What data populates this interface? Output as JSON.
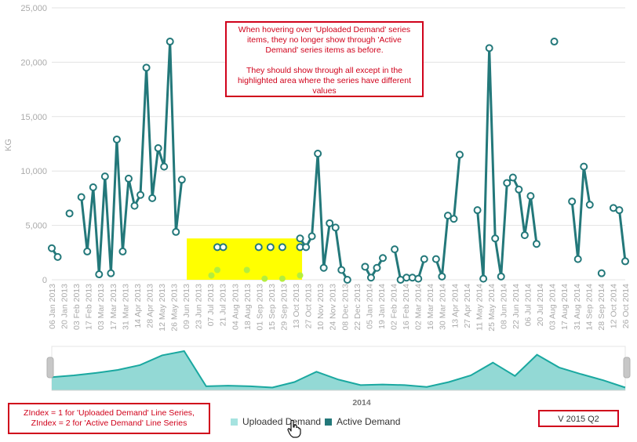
{
  "colors": {
    "active": "#23787a",
    "uploaded": "#a6e3e0",
    "navigator_fill": "#93d9d5",
    "navigator_line": "#1aa8a0",
    "highlight": "#ffff00",
    "uploaded_point": "#b4ee3e",
    "grid": "#e3e3e3",
    "axis_text": "#aaaaaa",
    "annotation": "#d0021b"
  },
  "annotations": {
    "main_lines_1": [
      "When hovering over 'Uploaded Demand' series",
      "items, they no longer show through 'Active",
      "Demand' series items as before."
    ],
    "main_lines_2": [
      "They should show through all except in the",
      "highlighted area where the series have different",
      "values"
    ],
    "zindex_lines": [
      "ZIndex = 1 for 'Uploaded Demand' Line Series,",
      "ZIndex = 2 for 'Active Demand' Line Series"
    ],
    "version": "V 2015 Q2"
  },
  "legend": {
    "uploaded": "Uploaded Demand",
    "active": "Active Demand"
  },
  "cursor_icon": "hand-pointer-icon",
  "chart_data": {
    "type": "line",
    "ylabel": "KG",
    "ylim": [
      0,
      25000
    ],
    "y_ticks": [
      "0",
      "5,000",
      "10,000",
      "15,000",
      "20,000",
      "25,000"
    ],
    "x_labels": [
      "06 Jan 2013",
      "20 Jan 2013",
      "03 Feb 2013",
      "17 Feb 2013",
      "03 Mar 2013",
      "17 Mar 2013",
      "31 Mar 2013",
      "14 Apr 2013",
      "28 Apr 2013",
      "12 May 2013",
      "26 May 2013",
      "09 Jun 2013",
      "23 Jun 2013",
      "07 Jul 2013",
      "21 Jul 2013",
      "04 Aug 2013",
      "18 Aug 2013",
      "01 Sep 2013",
      "15 Sep 2013",
      "29 Sep 2013",
      "13 Oct 2013",
      "27 Oct 2013",
      "10 Nov 2013",
      "24 Nov 2013",
      "08 Dec 2013",
      "22 Dec 2013",
      "05 Jan 2014",
      "19 Jan 2014",
      "02 Feb 2014",
      "16 Feb 2014",
      "02 Mar 2014",
      "16 Mar 2014",
      "30 Mar 2014",
      "13 Apr 2014",
      "27 Apr 2014",
      "11 May 2014",
      "25 May 2014",
      "08 Jun 2014",
      "22 Jun 2014",
      "06 Jul 2014",
      "20 Jul 2014",
      "03 Aug 2014",
      "17 Aug 2014",
      "31 Aug 2014",
      "14 Sep 2014",
      "28 Sep 2014",
      "12 Oct 2014",
      "26 Oct 2014"
    ],
    "series": [
      {
        "name": "Active Demand",
        "values": [
          2900,
          2100,
          null,
          6100,
          null,
          7600,
          2600,
          8500,
          500,
          9500,
          600,
          12900,
          2600,
          9300,
          6800,
          7800,
          19500,
          7500,
          12100,
          10400,
          21900,
          4400,
          9200,
          null,
          null,
          null,
          null,
          null,
          null,
          null,
          null,
          null,
          null,
          null,
          null,
          null,
          null,
          null,
          null,
          null,
          null,
          null,
          3800,
          3000,
          4000,
          11600,
          1100,
          5200,
          4800,
          900,
          0,
          null,
          null,
          1200,
          200,
          1100,
          2000,
          null,
          2800,
          0,
          200,
          200,
          100,
          1900,
          null,
          1900,
          300,
          5900,
          5600,
          11500,
          null,
          null,
          6400,
          100,
          21300,
          3800,
          300,
          8900,
          9400,
          8300,
          4100,
          7700,
          3300,
          null,
          null,
          21900,
          null,
          null,
          7200,
          1900,
          10400,
          6900,
          null,
          600,
          null,
          6600,
          6400,
          1700
        ]
      },
      {
        "name": "Uploaded Demand",
        "values": [
          null,
          null,
          null,
          null,
          null,
          null,
          null,
          null,
          null,
          null,
          null,
          null,
          null,
          null,
          null,
          null,
          null,
          null,
          null,
          null,
          null,
          null,
          null,
          null,
          null,
          null,
          null,
          null,
          3000,
          3000,
          null,
          null,
          null,
          null,
          null,
          3000,
          null,
          3000,
          null,
          3000,
          null,
          null,
          3000,
          null,
          null,
          null,
          null,
          null,
          null,
          null,
          null,
          null,
          null,
          null,
          null,
          null,
          null,
          null,
          null,
          null,
          null,
          null,
          null,
          null,
          null,
          null,
          null,
          null,
          null,
          null,
          null,
          null,
          null,
          null,
          null,
          null,
          null,
          null,
          null,
          null,
          null,
          null,
          null,
          null,
          null,
          null,
          null,
          null,
          null,
          null,
          null,
          null,
          null,
          null,
          null,
          null,
          null,
          null
        ]
      }
    ],
    "uploaded_inner_values": [
      400,
      900,
      900,
      100,
      100,
      400
    ],
    "highlight_range": {
      "x_from_label": "09 Jun 2013",
      "x_to_label": "13 Oct 2013",
      "y_to": 3800
    },
    "navigator": {
      "label": "2014",
      "values": [
        19,
        22,
        26,
        31,
        39,
        55,
        62,
        4,
        5,
        4,
        2,
        11,
        28,
        15,
        6,
        7,
        6,
        3,
        11,
        22,
        43,
        21,
        56,
        35,
        24,
        14,
        2
      ]
    }
  }
}
